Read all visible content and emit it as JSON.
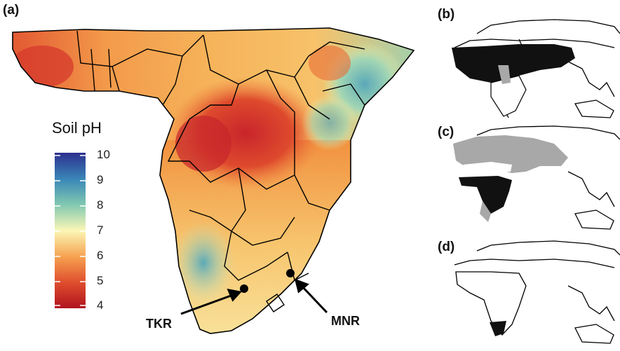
{
  "panels": {
    "a": {
      "label": "(a)"
    },
    "b": {
      "label": "(b)"
    },
    "c": {
      "label": "(c)"
    },
    "d": {
      "label": "(d)"
    }
  },
  "legend": {
    "title": "Soil pH",
    "ticks": [
      "10",
      "9",
      "8",
      "7",
      "6",
      "5",
      "4"
    ],
    "colors": [
      "#2c2f8e",
      "#3a87b8",
      "#7fc7b1",
      "#fbf7b6",
      "#f6a14f",
      "#e0502f",
      "#b1131f"
    ]
  },
  "sites": {
    "tkr": {
      "label": "TKR"
    },
    "mnr": {
      "label": "MNR"
    }
  },
  "colors": {
    "land_dark": "#111111",
    "land_grey": "#a8a8a8",
    "outline": "#000000"
  }
}
